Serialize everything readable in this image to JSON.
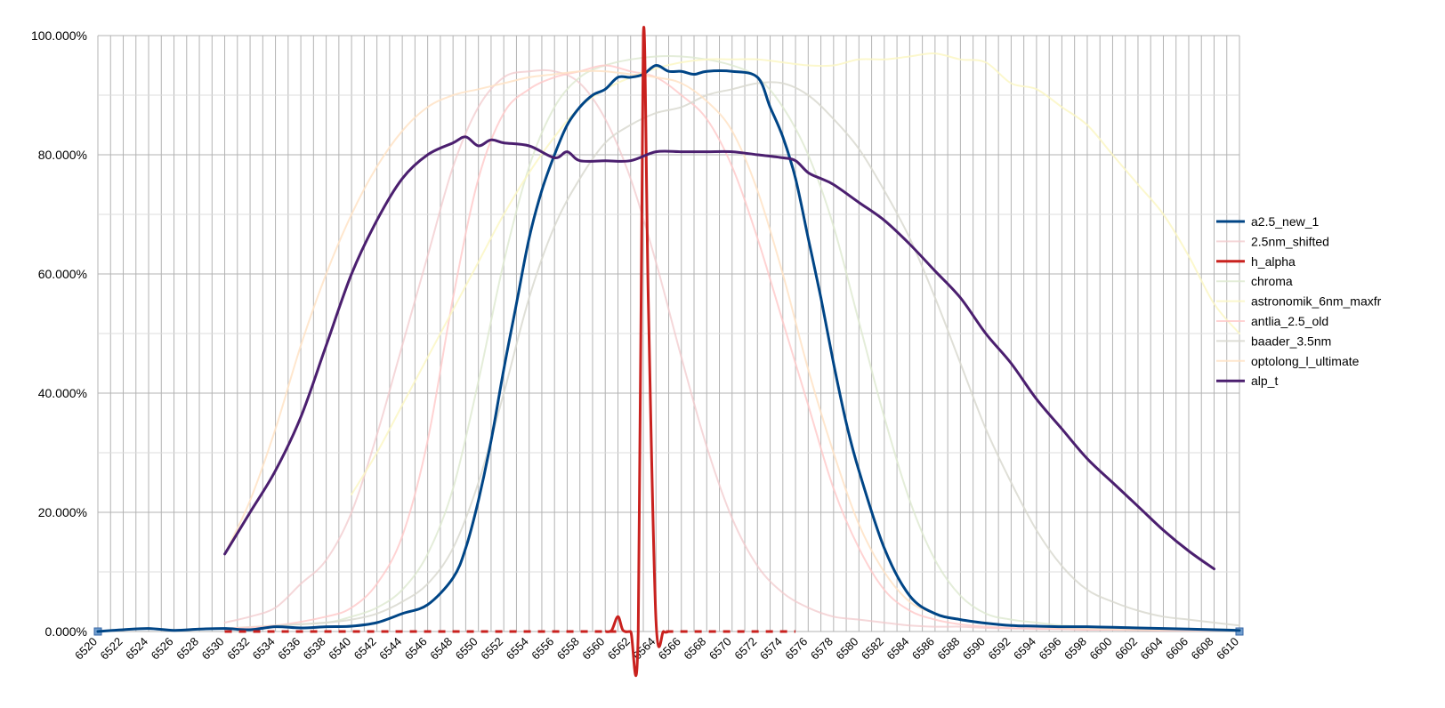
{
  "chart_data": {
    "type": "line",
    "title": "",
    "xlabel": "",
    "ylabel": "",
    "xlim": [
      6520,
      6610
    ],
    "ylim": [
      0,
      100
    ],
    "y_ticks": [
      0,
      20,
      40,
      60,
      80,
      100
    ],
    "y_tick_labels": [
      "0.000%",
      "20.000%",
      "40.000%",
      "60.000%",
      "80.000%",
      "100.000%"
    ],
    "x_ticks": [
      6520,
      6522,
      6524,
      6526,
      6528,
      6530,
      6532,
      6534,
      6536,
      6538,
      6540,
      6542,
      6544,
      6546,
      6548,
      6550,
      6552,
      6554,
      6556,
      6558,
      6560,
      6562,
      6564,
      6566,
      6568,
      6570,
      6572,
      6574,
      6576,
      6578,
      6580,
      6582,
      6584,
      6586,
      6588,
      6590,
      6592,
      6594,
      6596,
      6598,
      6600,
      6602,
      6604,
      6606,
      6608,
      6610
    ],
    "x_tick_labels": [
      "6520",
      "6522",
      "6524",
      "6526",
      "6528",
      "6530",
      "6532",
      "6534",
      "6536",
      "6538",
      "6540",
      "6542",
      "6544",
      "6546",
      "6548",
      "6550",
      "6552",
      "6554",
      "6556",
      "6558",
      "6560",
      "6562",
      "6564",
      "6566",
      "6568",
      "6570",
      "6572",
      "6574",
      "6576",
      "6578",
      "6580",
      "6582",
      "6584",
      "6586",
      "6588",
      "6590",
      "6592",
      "6594",
      "6596",
      "6598",
      "6600",
      "6602",
      "6604",
      "6606",
      "6608",
      "6610"
    ],
    "grid": true,
    "legend_position": "right",
    "series": [
      {
        "name": "a2.5_new_1",
        "color": "#004586",
        "width": 3,
        "opacity": 1,
        "x": [
          6520,
          6522,
          6524,
          6526,
          6528,
          6530,
          6532,
          6534,
          6536,
          6538,
          6540,
          6542,
          6544,
          6546,
          6548,
          6549,
          6550,
          6551,
          6552,
          6553,
          6554,
          6555,
          6556,
          6557,
          6558,
          6559,
          6560,
          6561,
          6562,
          6563,
          6564,
          6565,
          6566,
          6567,
          6568,
          6570,
          6572,
          6573,
          6574,
          6575,
          6576,
          6577,
          6578,
          6579,
          6580,
          6582,
          6584,
          6586,
          6588,
          6590,
          6592,
          6594,
          6596,
          6598,
          6600,
          6602,
          6604,
          6606,
          6608,
          6610
        ],
        "y": [
          0,
          0.3,
          0.5,
          0.2,
          0.4,
          0.5,
          0.3,
          0.8,
          0.6,
          0.8,
          0.9,
          1.5,
          3,
          4.5,
          9,
          14,
          22,
          32,
          44,
          55,
          66,
          74,
          80,
          85,
          88,
          90,
          91,
          93,
          93,
          93.5,
          95,
          94,
          94,
          93.5,
          94,
          94,
          93,
          88,
          83,
          76,
          66,
          56,
          45,
          35,
          27,
          14,
          6,
          3,
          2,
          1.4,
          1,
          0.9,
          0.8,
          0.8,
          0.7,
          0.6,
          0.5,
          0.4,
          0.3,
          0.2
        ]
      },
      {
        "name": "2.5nm_shifted",
        "color": "#f2c9cc",
        "width": 2,
        "opacity": 0.75,
        "x": [
          6530,
          6532,
          6534,
          6536,
          6538,
          6540,
          6542,
          6544,
          6546,
          6548,
          6550,
          6552,
          6554,
          6556,
          6558,
          6560,
          6562,
          6564,
          6566,
          6568,
          6570,
          6572,
          6574,
          6576,
          6578,
          6580,
          6582,
          6584,
          6586,
          6588,
          6590,
          6592,
          6594,
          6596,
          6598,
          6600,
          6602,
          6604,
          6606,
          6608,
          6610
        ],
        "y": [
          1.5,
          2.5,
          4,
          8,
          12,
          20,
          33,
          48,
          63,
          78,
          88,
          93,
          94,
          94,
          92,
          86,
          76,
          62,
          46,
          31,
          19,
          11,
          6.5,
          4,
          2.5,
          2,
          1.5,
          1,
          0.8,
          0.8,
          0.6,
          0.5,
          0.4,
          0.4,
          0.3,
          0.3,
          0.3,
          0.2,
          0.2,
          0.2,
          0.2
        ]
      },
      {
        "name": "h_alpha",
        "color": "#c9211e",
        "width": 3,
        "opacity": 1,
        "x": [
          6530,
          6560,
          6560.5,
          6561,
          6561.4,
          6562,
          6562.6,
          6563,
          6563.4,
          6564,
          6564.6,
          6565,
          6575
        ],
        "y": [
          0,
          0,
          0.2,
          2.5,
          0.2,
          0,
          0,
          100,
          55,
          2,
          0,
          0,
          0
        ],
        "dash": [
          [
            6530,
            6561
          ],
          [
            6564.8,
            6575
          ]
        ]
      },
      {
        "name": "chroma",
        "color": "#dde8cf",
        "width": 2,
        "opacity": 0.8,
        "x": [
          6530,
          6534,
          6538,
          6540,
          6542,
          6544,
          6546,
          6548,
          6550,
          6552,
          6554,
          6556,
          6558,
          6560,
          6562,
          6564,
          6566,
          6568,
          6570,
          6572,
          6574,
          6576,
          6578,
          6580,
          6582,
          6584,
          6586,
          6588,
          6590,
          6592,
          6594,
          6596,
          6598,
          6600,
          6604,
          6610
        ],
        "y": [
          0.5,
          1,
          1.5,
          2.5,
          4,
          7,
          13,
          24,
          42,
          62,
          78,
          88,
          93,
          95,
          96,
          96.5,
          96.5,
          96,
          95,
          93,
          88,
          80,
          68,
          52,
          36,
          22,
          12,
          6,
          3,
          2,
          1.5,
          1,
          0.8,
          0.6,
          0.5,
          0.3
        ]
      },
      {
        "name": "astronomik_6nm_maxfr",
        "color": "#fbf7c4",
        "width": 2,
        "opacity": 0.85,
        "x": [
          6540,
          6542,
          6544,
          6546,
          6548,
          6550,
          6552,
          6554,
          6556,
          6558,
          6560,
          6562,
          6564,
          6566,
          6568,
          6570,
          6572,
          6574,
          6576,
          6578,
          6580,
          6582,
          6584,
          6586,
          6588,
          6590,
          6592,
          6594,
          6596,
          6598,
          6600,
          6602,
          6604,
          6606,
          6608,
          6610
        ],
        "y": [
          23,
          30,
          38,
          46,
          54,
          62,
          70,
          77,
          83,
          88,
          91,
          93,
          94.5,
          95.5,
          96,
          96,
          96,
          95.5,
          95,
          95,
          96,
          96,
          96.5,
          97,
          96,
          95.5,
          92,
          91,
          88,
          85,
          80,
          75,
          70,
          63,
          55,
          50
        ]
      },
      {
        "name": "antlia_2.5_old",
        "color": "#ffc8c8",
        "width": 2,
        "opacity": 0.8,
        "x": [
          6530,
          6534,
          6538,
          6540,
          6542,
          6544,
          6546,
          6548,
          6550,
          6552,
          6554,
          6556,
          6558,
          6560,
          6562,
          6564,
          6566,
          6568,
          6570,
          6572,
          6574,
          6576,
          6578,
          6580,
          6582,
          6584,
          6586,
          6588,
          6590,
          6592,
          6594,
          6596,
          6598,
          6600,
          6604,
          6610
        ],
        "y": [
          0.5,
          1,
          2.5,
          4,
          8,
          16,
          32,
          56,
          76,
          87,
          91,
          93,
          94,
          95,
          94,
          93,
          90,
          86,
          78,
          66,
          52,
          38,
          24,
          14,
          7,
          3.5,
          2,
          1.2,
          0.8,
          0.6,
          0.5,
          0.4,
          0.3,
          0.3,
          0.2,
          0.2
        ]
      },
      {
        "name": "baader_3.5nm",
        "color": "#d9d9d0",
        "width": 2,
        "opacity": 0.85,
        "x": [
          6534,
          6538,
          6540,
          6542,
          6544,
          6546,
          6548,
          6550,
          6552,
          6554,
          6556,
          6558,
          6560,
          6562,
          6564,
          6566,
          6568,
          6570,
          6572,
          6574,
          6576,
          6578,
          6580,
          6582,
          6584,
          6586,
          6588,
          6590,
          6592,
          6594,
          6596,
          6598,
          6600,
          6602,
          6604,
          6606,
          6608,
          6610
        ],
        "y": [
          1,
          1.5,
          2,
          3,
          5,
          8,
          14,
          25,
          40,
          56,
          68,
          76,
          82,
          85,
          87,
          88,
          90,
          91,
          92,
          92,
          90,
          86,
          81,
          74,
          66,
          56,
          45,
          34,
          25,
          17,
          11,
          7,
          5,
          3.5,
          2.5,
          2,
          1.5,
          1
        ]
      },
      {
        "name": "optolong_l_ultimate",
        "color": "#ffe3c6",
        "width": 2,
        "opacity": 0.85,
        "x": [
          6530,
          6532,
          6534,
          6536,
          6538,
          6540,
          6542,
          6544,
          6546,
          6548,
          6550,
          6552,
          6554,
          6556,
          6558,
          6560,
          6562,
          6564,
          6566,
          6568,
          6570,
          6572,
          6574,
          6576,
          6578,
          6580,
          6582,
          6584,
          6586,
          6588,
          6590,
          6592,
          6594,
          6596,
          6598,
          6600,
          6604,
          6610
        ],
        "y": [
          13,
          22,
          34,
          48,
          60,
          70,
          78,
          84,
          88,
          90,
          91,
          92,
          93,
          93.5,
          94,
          94,
          93.5,
          93,
          92,
          89,
          84,
          74,
          60,
          44,
          30,
          18,
          10,
          5,
          3,
          2,
          1.5,
          1,
          0.8,
          0.6,
          0.5,
          0.4,
          0.3,
          0.2
        ]
      },
      {
        "name": "alp_t",
        "color": "#4b1f6f",
        "width": 3,
        "opacity": 1,
        "x": [
          6530,
          6532,
          6534,
          6536,
          6538,
          6540,
          6542,
          6544,
          6546,
          6548,
          6549,
          6550,
          6551,
          6552,
          6554,
          6556,
          6557,
          6558,
          6560,
          6562,
          6564,
          6566,
          6568,
          6570,
          6572,
          6574,
          6575,
          6576,
          6577,
          6578,
          6580,
          6582,
          6584,
          6586,
          6588,
          6590,
          6592,
          6594,
          6596,
          6598,
          6600,
          6602,
          6604,
          6606,
          6608
        ],
        "y": [
          13,
          20,
          27,
          36,
          48,
          60,
          69,
          76,
          80,
          82,
          83,
          81.5,
          82.5,
          82,
          81.5,
          79.5,
          80.5,
          79,
          79,
          79,
          80.5,
          80.5,
          80.5,
          80.5,
          80,
          79.5,
          79,
          77,
          76,
          75,
          72,
          69,
          65,
          60.5,
          56,
          50,
          45,
          39,
          34,
          29,
          25,
          21,
          17,
          13.5,
          10.5
        ]
      }
    ]
  }
}
